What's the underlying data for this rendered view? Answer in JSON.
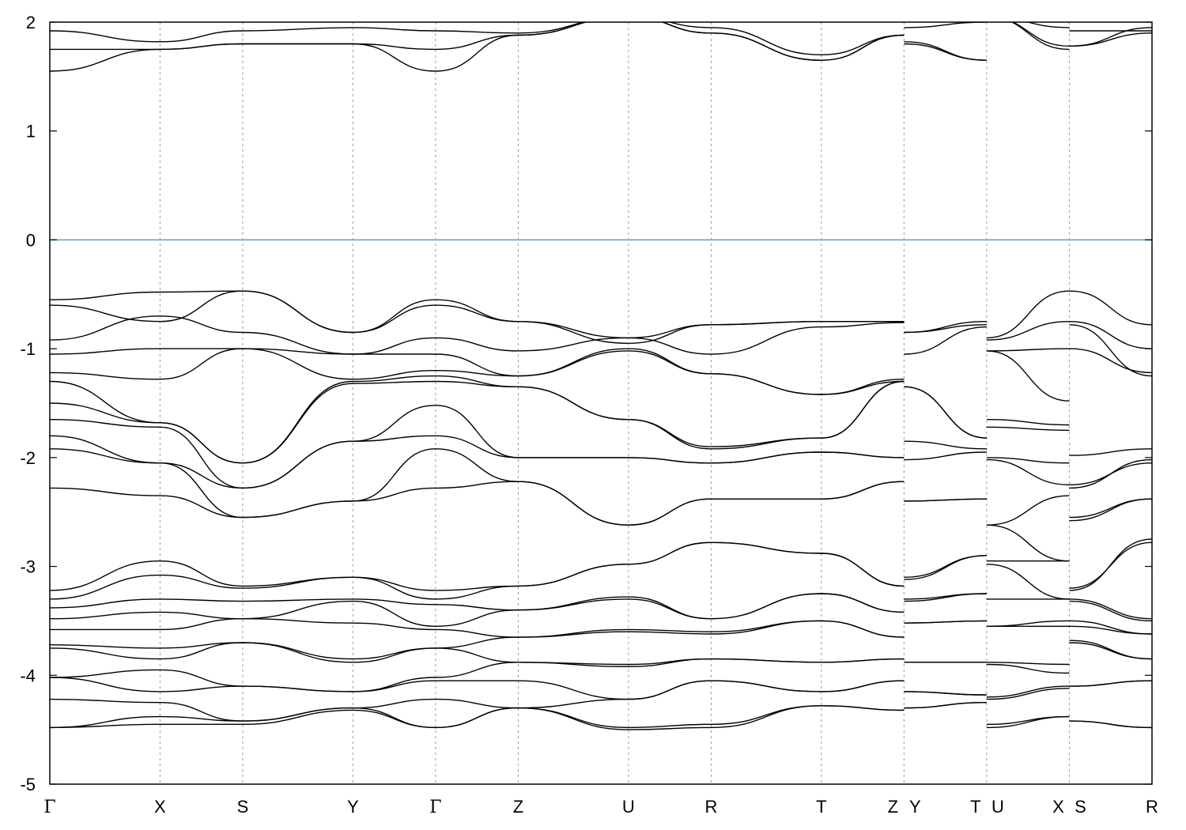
{
  "chart_data": {
    "type": "line",
    "title": "",
    "xlabel": "",
    "ylabel": "",
    "ylim": [
      -5,
      2
    ],
    "y_ticks": [
      2,
      1,
      0,
      -1,
      -2,
      -3,
      -4,
      -5
    ],
    "y_tick_labels": [
      "2",
      "1",
      "0",
      "-1",
      "-2",
      "-3",
      "-4",
      "-5"
    ],
    "fermi_level": 0,
    "fermi_color": "#5aaabb",
    "band_color": "#000000",
    "grid": "vertical dashed lines at high-symmetry points",
    "legend": "none",
    "kpoints": [
      {
        "label": "Γ",
        "x": 0.0
      },
      {
        "label": "X",
        "x": 1.0
      },
      {
        "label": "S",
        "x": 1.75
      },
      {
        "label": "Y",
        "x": 2.75
      },
      {
        "label": "Γ",
        "x": 3.5
      },
      {
        "label": "Z",
        "x": 4.25
      },
      {
        "label": "U",
        "x": 5.25
      },
      {
        "label": "R",
        "x": 6.0
      },
      {
        "label": "T",
        "x": 7.0
      },
      {
        "label": "Z",
        "x": 7.75
      },
      {
        "label": "Y",
        "x": 7.75
      },
      {
        "label": "T",
        "x": 8.5
      },
      {
        "label": "U",
        "x": 8.5
      },
      {
        "label": "X",
        "x": 9.25
      },
      {
        "label": "S",
        "x": 9.25
      },
      {
        "label": "R",
        "x": 10.0
      }
    ],
    "xlim": [
      0,
      10
    ],
    "segments": [
      {
        "x": [
          0,
          1,
          1.75,
          2.75,
          3.5,
          4.25,
          5.25,
          6.0,
          7.0,
          7.75
        ],
        "series": [
          [
            1.55,
            1.75,
            1.8,
            1.8,
            1.55,
            1.88,
            2.05,
            1.9,
            1.65,
            1.88
          ],
          [
            1.75,
            1.75,
            1.8,
            1.8,
            1.75,
            1.88,
            2.05,
            1.9,
            1.65,
            1.88
          ],
          [
            1.92,
            1.82,
            1.92,
            1.95,
            1.92,
            1.9,
            2.05,
            1.95,
            1.7,
            1.88
          ],
          [
            -0.55,
            -0.48,
            -0.47,
            -0.85,
            -0.55,
            -0.75,
            -0.9,
            -0.78,
            -0.75,
            -0.75
          ],
          [
            -0.6,
            -0.75,
            -0.47,
            -0.85,
            -0.6,
            -0.75,
            -0.95,
            -0.78,
            -0.75,
            -0.75
          ],
          [
            -0.92,
            -0.7,
            -0.85,
            -1.05,
            -0.9,
            -1.02,
            -0.9,
            -1.05,
            -0.8,
            -0.76
          ],
          [
            -1.05,
            -1.0,
            -1.0,
            -1.05,
            -1.05,
            -1.25,
            -1.0,
            -1.23,
            -1.42,
            -1.28
          ],
          [
            -1.22,
            -1.28,
            -1.0,
            -1.28,
            -1.2,
            -1.25,
            -1.02,
            -1.23,
            -1.42,
            -1.3
          ],
          [
            -1.3,
            -1.68,
            -2.05,
            -1.3,
            -1.25,
            -1.35,
            -1.65,
            -1.9,
            -1.82,
            -1.3
          ],
          [
            -1.5,
            -1.68,
            -2.05,
            -1.32,
            -1.3,
            -1.35,
            -1.65,
            -1.92,
            -1.82,
            -1.3
          ],
          [
            -1.65,
            -1.72,
            -2.28,
            -1.85,
            -1.52,
            -2.0,
            -2.0,
            -2.05,
            -1.95,
            -2.0
          ],
          [
            -1.8,
            -2.05,
            -2.28,
            -1.85,
            -1.8,
            -2.0,
            -2.0,
            -2.05,
            -1.95,
            -2.0
          ],
          [
            -1.92,
            -2.05,
            -2.55,
            -2.4,
            -1.92,
            -2.22,
            -2.62,
            -2.38,
            -2.38,
            -2.22
          ],
          [
            -2.28,
            -2.35,
            -2.55,
            -2.4,
            -2.28,
            -2.22,
            -2.62,
            -2.38,
            -2.38,
            -2.22
          ],
          [
            -3.22,
            -2.95,
            -3.18,
            -3.1,
            -3.22,
            -3.18,
            -2.98,
            -2.78,
            -2.88,
            -3.18
          ],
          [
            -3.3,
            -3.08,
            -3.2,
            -3.1,
            -3.3,
            -3.18,
            -2.98,
            -2.78,
            -2.88,
            -3.18
          ],
          [
            -3.38,
            -3.3,
            -3.32,
            -3.3,
            -3.35,
            -3.4,
            -3.28,
            -3.48,
            -3.25,
            -3.42
          ],
          [
            -3.48,
            -3.42,
            -3.48,
            -3.32,
            -3.55,
            -3.4,
            -3.3,
            -3.48,
            -3.25,
            -3.42
          ],
          [
            -3.58,
            -3.58,
            -3.48,
            -3.52,
            -3.58,
            -3.65,
            -3.58,
            -3.6,
            -3.5,
            -3.65
          ],
          [
            -3.72,
            -3.75,
            -3.7,
            -3.85,
            -3.75,
            -3.65,
            -3.6,
            -3.62,
            -3.5,
            -3.65
          ],
          [
            -3.75,
            -3.85,
            -3.7,
            -3.88,
            -3.75,
            -3.88,
            -3.9,
            -3.85,
            -3.88,
            -3.85
          ],
          [
            -4.02,
            -3.95,
            -4.1,
            -4.15,
            -4.02,
            -3.88,
            -3.92,
            -3.85,
            -3.88,
            -3.85
          ],
          [
            -4.02,
            -4.15,
            -4.1,
            -4.15,
            -4.05,
            -4.05,
            -4.22,
            -4.05,
            -4.15,
            -4.05
          ],
          [
            -4.22,
            -4.25,
            -4.42,
            -4.3,
            -4.22,
            -4.3,
            -4.22,
            -4.05,
            -4.15,
            -4.05
          ],
          [
            -4.48,
            -4.38,
            -4.42,
            -4.3,
            -4.48,
            -4.3,
            -4.48,
            -4.45,
            -4.28,
            -4.32
          ],
          [
            -4.48,
            -4.45,
            -4.45,
            -4.32,
            -4.48,
            -4.3,
            -4.5,
            -4.48,
            -4.28,
            -4.32
          ]
        ]
      },
      {
        "x": [
          7.75,
          8.5
        ],
        "series": [
          [
            1.8,
            1.65
          ],
          [
            1.82,
            1.65
          ],
          [
            1.95,
            2.0
          ],
          [
            -0.85,
            -0.75
          ],
          [
            -0.85,
            -0.78
          ],
          [
            -1.05,
            -0.8
          ],
          [
            -1.35,
            -1.82
          ],
          [
            -1.35,
            -1.82
          ],
          [
            -1.85,
            -1.92
          ],
          [
            -2.02,
            -1.95
          ],
          [
            -2.4,
            -2.38
          ],
          [
            -2.4,
            -2.38
          ],
          [
            -3.1,
            -2.9
          ],
          [
            -3.12,
            -2.9
          ],
          [
            -3.3,
            -3.25
          ],
          [
            -3.32,
            -3.25
          ],
          [
            -3.52,
            -3.5
          ],
          [
            -3.52,
            -3.5
          ],
          [
            -3.88,
            -3.88
          ],
          [
            -3.88,
            -3.88
          ],
          [
            -4.15,
            -4.18
          ],
          [
            -4.15,
            -4.18
          ],
          [
            -4.3,
            -4.25
          ],
          [
            -4.3,
            -4.25
          ]
        ]
      },
      {
        "x": [
          8.5,
          9.25
        ],
        "series": [
          [
            2.05,
            1.75
          ],
          [
            2.05,
            1.78
          ],
          [
            2.05,
            1.95
          ],
          [
            -0.9,
            -0.47
          ],
          [
            -0.92,
            -0.75
          ],
          [
            -1.02,
            -1.0
          ],
          [
            -1.02,
            -1.48
          ],
          [
            -1.65,
            -1.7
          ],
          [
            -1.72,
            -1.75
          ],
          [
            -2.0,
            -2.05
          ],
          [
            -2.02,
            -2.25
          ],
          [
            -2.62,
            -2.35
          ],
          [
            -2.62,
            -2.95
          ],
          [
            -2.95,
            -2.95
          ],
          [
            -2.98,
            -3.3
          ],
          [
            -3.3,
            -3.3
          ],
          [
            -3.55,
            -3.5
          ],
          [
            -3.55,
            -3.55
          ],
          [
            -3.88,
            -3.9
          ],
          [
            -3.9,
            -3.98
          ],
          [
            -4.2,
            -4.1
          ],
          [
            -4.22,
            -4.12
          ],
          [
            -4.45,
            -4.38
          ],
          [
            -4.48,
            -4.38
          ]
        ]
      },
      {
        "x": [
          9.25,
          10
        ],
        "series": [
          [
            1.92,
            1.92
          ],
          [
            1.78,
            1.9
          ],
          [
            1.78,
            1.95
          ],
          [
            -0.47,
            -0.78
          ],
          [
            -0.75,
            -1.0
          ],
          [
            -0.78,
            -1.25
          ],
          [
            -1.0,
            -1.22
          ],
          [
            -1.98,
            -1.92
          ],
          [
            -2.25,
            -2.05
          ],
          [
            -2.28,
            -2.02
          ],
          [
            -2.55,
            -2.38
          ],
          [
            -2.58,
            -2.38
          ],
          [
            -3.2,
            -2.78
          ],
          [
            -3.22,
            -2.75
          ],
          [
            -3.3,
            -3.48
          ],
          [
            -3.32,
            -3.5
          ],
          [
            -3.5,
            -3.62
          ],
          [
            -3.55,
            -3.62
          ],
          [
            -3.68,
            -3.85
          ],
          [
            -3.7,
            -3.85
          ],
          [
            -4.1,
            -4.05
          ],
          [
            -4.1,
            -4.05
          ],
          [
            -4.42,
            -4.48
          ],
          [
            -4.42,
            -4.48
          ]
        ]
      }
    ]
  }
}
